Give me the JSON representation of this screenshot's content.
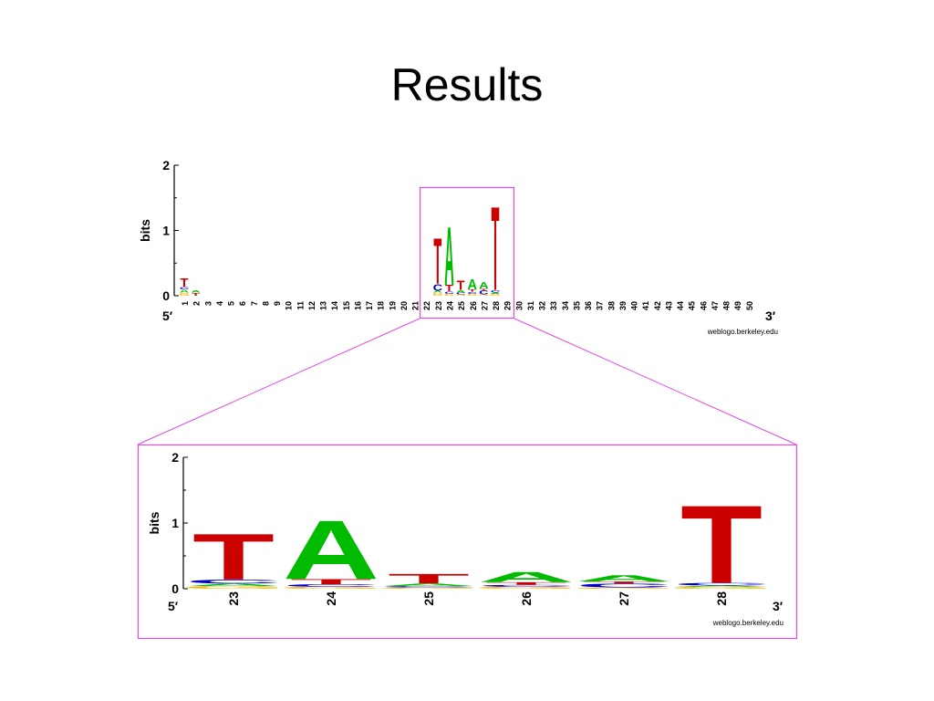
{
  "slide": {
    "title": "Results"
  },
  "colors": {
    "A": "#00bb00",
    "C": "#0000cc",
    "G": "#ffb300",
    "T": "#cc0000",
    "highlight": "#e04ce0"
  },
  "chart_data": [
    {
      "type": "sequence-logo",
      "title": "",
      "ylabel": "bits",
      "ylim": [
        0,
        2
      ],
      "yticks": [
        "0",
        "1",
        "2"
      ],
      "xlabel_left": "5′",
      "xlabel_right": "3′",
      "credit": "weblogo.berkeley.edu",
      "positions": [
        {
          "pos": "1",
          "stack": [
            [
              "G",
              0.05
            ],
            [
              "A",
              0.05
            ],
            [
              "C",
              0.04
            ],
            [
              "T",
              0.13
            ]
          ]
        },
        {
          "pos": "2",
          "stack": [
            [
              "T",
              0.05
            ],
            [
              "A",
              0.04
            ]
          ]
        },
        {
          "pos": "3",
          "stack": []
        },
        {
          "pos": "4",
          "stack": []
        },
        {
          "pos": "5",
          "stack": []
        },
        {
          "pos": "6",
          "stack": []
        },
        {
          "pos": "7",
          "stack": []
        },
        {
          "pos": "8",
          "stack": []
        },
        {
          "pos": "9",
          "stack": []
        },
        {
          "pos": "10",
          "stack": []
        },
        {
          "pos": "11",
          "stack": []
        },
        {
          "pos": "12",
          "stack": []
        },
        {
          "pos": "13",
          "stack": []
        },
        {
          "pos": "14",
          "stack": []
        },
        {
          "pos": "15",
          "stack": []
        },
        {
          "pos": "16",
          "stack": []
        },
        {
          "pos": "17",
          "stack": []
        },
        {
          "pos": "18",
          "stack": []
        },
        {
          "pos": "19",
          "stack": []
        },
        {
          "pos": "20",
          "stack": []
        },
        {
          "pos": "21",
          "stack": []
        },
        {
          "pos": "22",
          "stack": []
        },
        {
          "pos": "23",
          "stack": [
            [
              "G",
              0.05
            ],
            [
              "A",
              0.03
            ],
            [
              "C",
              0.1
            ],
            [
              "T",
              0.72
            ]
          ]
        },
        {
          "pos": "24",
          "stack": [
            [
              "G",
              0.03
            ],
            [
              "C",
              0.04
            ],
            [
              "T",
              0.1
            ],
            [
              "A",
              0.92
            ]
          ]
        },
        {
          "pos": "25",
          "stack": [
            [
              "G",
              0.02
            ],
            [
              "C",
              0.03
            ],
            [
              "A",
              0.04
            ],
            [
              "T",
              0.15
            ]
          ]
        },
        {
          "pos": "26",
          "stack": [
            [
              "G",
              0.03
            ],
            [
              "C",
              0.03
            ],
            [
              "T",
              0.04
            ],
            [
              "A",
              0.16
            ]
          ]
        },
        {
          "pos": "27",
          "stack": [
            [
              "G",
              0.02
            ],
            [
              "C",
              0.06
            ],
            [
              "T",
              0.03
            ],
            [
              "A",
              0.1
            ]
          ]
        },
        {
          "pos": "28",
          "stack": [
            [
              "G",
              0.03
            ],
            [
              "A",
              0.02
            ],
            [
              "C",
              0.04
            ],
            [
              "T",
              1.32
            ]
          ]
        },
        {
          "pos": "29",
          "stack": []
        },
        {
          "pos": "30",
          "stack": []
        },
        {
          "pos": "31",
          "stack": []
        },
        {
          "pos": "32",
          "stack": []
        },
        {
          "pos": "33",
          "stack": []
        },
        {
          "pos": "34",
          "stack": []
        },
        {
          "pos": "35",
          "stack": []
        },
        {
          "pos": "36",
          "stack": []
        },
        {
          "pos": "37",
          "stack": []
        },
        {
          "pos": "38",
          "stack": []
        },
        {
          "pos": "39",
          "stack": []
        },
        {
          "pos": "40",
          "stack": []
        },
        {
          "pos": "41",
          "stack": []
        },
        {
          "pos": "42",
          "stack": []
        },
        {
          "pos": "43",
          "stack": []
        },
        {
          "pos": "44",
          "stack": []
        },
        {
          "pos": "45",
          "stack": []
        },
        {
          "pos": "46",
          "stack": []
        },
        {
          "pos": "47",
          "stack": []
        },
        {
          "pos": "48",
          "stack": []
        },
        {
          "pos": "49",
          "stack": []
        },
        {
          "pos": "50",
          "stack": []
        }
      ]
    },
    {
      "type": "sequence-logo",
      "title": "",
      "ylabel": "bits",
      "ylim": [
        0,
        2
      ],
      "yticks": [
        "0",
        "1",
        "2"
      ],
      "xlabel_left": "5′",
      "xlabel_right": "3′",
      "credit": "weblogo.berkeley.edu",
      "positions": [
        {
          "pos": "23",
          "stack": [
            [
              "G",
              0.04
            ],
            [
              "A",
              0.04
            ],
            [
              "C",
              0.06
            ],
            [
              "T",
              0.72
            ]
          ]
        },
        {
          "pos": "24",
          "stack": [
            [
              "G",
              0.03
            ],
            [
              "C",
              0.04
            ],
            [
              "T",
              0.08
            ],
            [
              "A",
              0.92
            ]
          ]
        },
        {
          "pos": "25",
          "stack": [
            [
              "G",
              0.02
            ],
            [
              "C",
              0.02
            ],
            [
              "A",
              0.04
            ],
            [
              "T",
              0.15
            ]
          ]
        },
        {
          "pos": "26",
          "stack": [
            [
              "G",
              0.03
            ],
            [
              "C",
              0.03
            ],
            [
              "T",
              0.04
            ],
            [
              "A",
              0.16
            ]
          ]
        },
        {
          "pos": "27",
          "stack": [
            [
              "G",
              0.02
            ],
            [
              "C",
              0.06
            ],
            [
              "T",
              0.03
            ],
            [
              "A",
              0.1
            ]
          ]
        },
        {
          "pos": "28",
          "stack": [
            [
              "G",
              0.03
            ],
            [
              "A",
              0.02
            ],
            [
              "C",
              0.04
            ],
            [
              "T",
              1.22
            ]
          ]
        }
      ]
    }
  ]
}
